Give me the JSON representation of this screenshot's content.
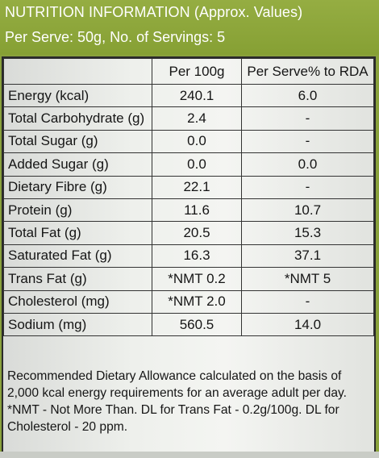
{
  "header": {
    "title": "NUTRITION INFORMATION (Approx. Values)",
    "serving": "Per Serve: 50g, No. of Servings: 5"
  },
  "table": {
    "columns": [
      "",
      "Per 100g",
      "Per Serve% to RDA"
    ],
    "rows": [
      {
        "name": "Energy (kcal)",
        "per100": "240.1",
        "rda": "6.0"
      },
      {
        "name": "Total Carbohydrate (g)",
        "per100": "2.4",
        "rda": "-"
      },
      {
        "name": "Total Sugar (g)",
        "per100": "0.0",
        "rda": "-"
      },
      {
        "name": "Added Sugar (g)",
        "per100": "0.0",
        "rda": "0.0"
      },
      {
        "name": "Dietary Fibre (g)",
        "per100": "22.1",
        "rda": "-"
      },
      {
        "name": "Protein (g)",
        "per100": "11.6",
        "rda": "10.7"
      },
      {
        "name": "Total Fat (g)",
        "per100": "20.5",
        "rda": "15.3"
      },
      {
        "name": "Saturated Fat (g)",
        "per100": "16.3",
        "rda": "37.1"
      },
      {
        "name": "Trans Fat (g)",
        "per100": "*NMT 0.2",
        "rda": "*NMT 5"
      },
      {
        "name": "Cholesterol (mg)",
        "per100": "*NMT 2.0",
        "rda": "-"
      },
      {
        "name": "Sodium (mg)",
        "per100": "560.5",
        "rda": "14.0"
      }
    ]
  },
  "footnote": {
    "line1": "Recommended Dietary Allowance calculated on the basis of",
    "line2": "2,000 kcal energy requirements for an average adult per day.",
    "line3": "*NMT - Not More Than. DL for Trans Fat - 0.2g/100g. DL for",
    "line4": "Cholesterol - 20 ppm."
  }
}
